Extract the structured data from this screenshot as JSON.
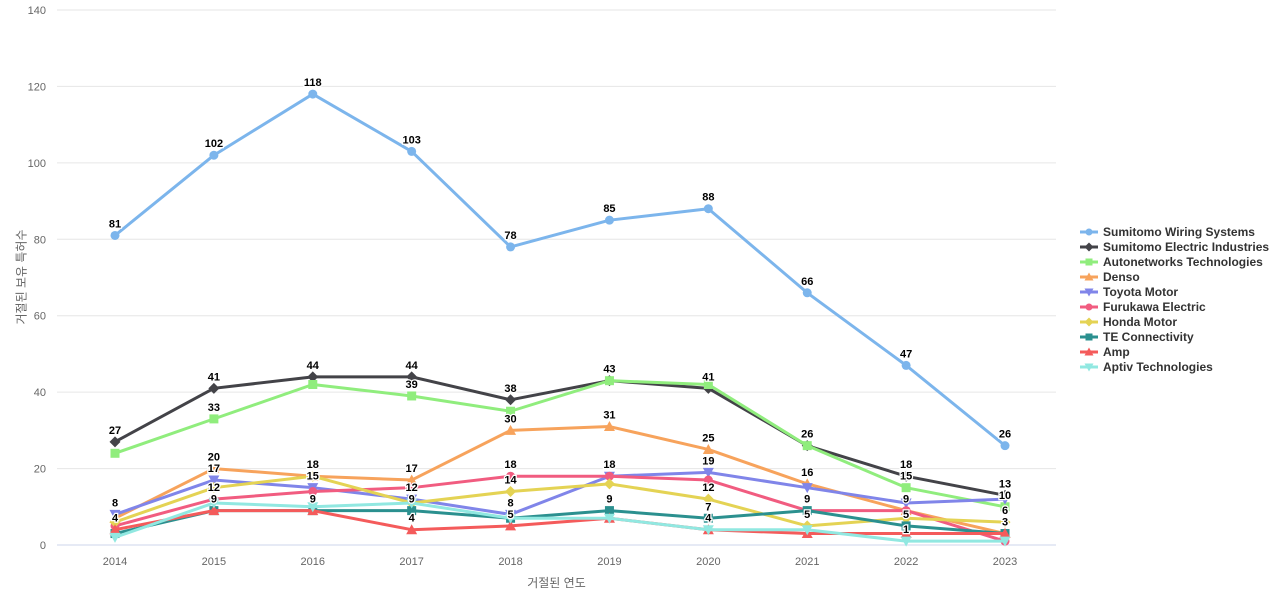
{
  "chart_data": {
    "type": "line",
    "title": "",
    "xlabel": "거절된 연도",
    "ylabel": "거절된 보유 특허수",
    "x_categories": [
      "2014",
      "2015",
      "2016",
      "2017",
      "2018",
      "2019",
      "2020",
      "2021",
      "2022",
      "2023"
    ],
    "y_ticks": [
      0,
      20,
      40,
      60,
      80,
      100,
      120,
      140
    ],
    "ylim": [
      0,
      140
    ],
    "grid": true,
    "legend_position": "right",
    "axis_colors": {
      "grid_line": "#e6e6e6",
      "axis_line": "#ccd6eb",
      "tick_text": "#666666"
    },
    "series": [
      {
        "name": "Sumitomo Wiring Systems",
        "color": "#7cb5ec",
        "marker": "circle",
        "values": [
          81,
          102,
          118,
          103,
          78,
          85,
          88,
          66,
          47,
          26
        ],
        "labels_visible": [
          1,
          1,
          1,
          1,
          1,
          1,
          1,
          1,
          1,
          1
        ]
      },
      {
        "name": "Sumitomo Electric Industries",
        "color": "#434348",
        "marker": "diamond",
        "values": [
          27,
          41,
          44,
          44,
          38,
          43,
          41,
          26,
          18,
          13
        ],
        "labels_visible": [
          1,
          1,
          1,
          1,
          1,
          1,
          1,
          1,
          1,
          1
        ]
      },
      {
        "name": "Autonetworks Technologies",
        "color": "#90ed7d",
        "marker": "square",
        "values": [
          24,
          33,
          42,
          39,
          35,
          43,
          42,
          26,
          15,
          10
        ],
        "labels_visible": [
          0,
          1,
          0,
          1,
          0,
          0,
          0,
          0,
          1,
          1
        ]
      },
      {
        "name": "Denso",
        "color": "#f7a35c",
        "marker": "triangle",
        "values": [
          7,
          20,
          18,
          17,
          30,
          31,
          25,
          16,
          9,
          3
        ],
        "labels_visible": [
          0,
          1,
          1,
          1,
          1,
          1,
          1,
          1,
          1,
          1
        ]
      },
      {
        "name": "Toyota Motor",
        "color": "#8085e9",
        "marker": "triangle-down",
        "values": [
          8,
          17,
          15,
          12,
          8,
          18,
          19,
          15,
          11,
          12
        ],
        "labels_visible": [
          1,
          1,
          1,
          1,
          1,
          1,
          1,
          0,
          0,
          0
        ]
      },
      {
        "name": "Furukawa Electric",
        "color": "#f15c80",
        "marker": "circle",
        "values": [
          5,
          12,
          14,
          15,
          18,
          18,
          17,
          9,
          9,
          1
        ],
        "labels_visible": [
          0,
          1,
          0,
          0,
          1,
          0,
          0,
          1,
          0,
          0
        ]
      },
      {
        "name": "Honda Motor",
        "color": "#e4d354",
        "marker": "diamond",
        "values": [
          6,
          15,
          18,
          11,
          14,
          16,
          12,
          5,
          7,
          6
        ],
        "labels_visible": [
          0,
          0,
          0,
          0,
          1,
          0,
          1,
          1,
          0,
          1
        ]
      },
      {
        "name": "TE Connectivity",
        "color": "#2b908f",
        "marker": "square",
        "values": [
          3,
          9,
          9,
          9,
          7,
          9,
          7,
          9,
          5,
          3
        ],
        "labels_visible": [
          0,
          1,
          1,
          1,
          0,
          1,
          1,
          0,
          1,
          0
        ]
      },
      {
        "name": "Amp",
        "color": "#f45b5b",
        "marker": "triangle",
        "values": [
          4,
          9,
          9,
          4,
          5,
          7,
          4,
          3,
          3,
          3
        ],
        "labels_visible": [
          1,
          0,
          0,
          1,
          1,
          0,
          1,
          0,
          0,
          0
        ]
      },
      {
        "name": "Aptiv Technologies",
        "color": "#91e8e1",
        "marker": "triangle-down",
        "values": [
          2,
          11,
          10,
          11,
          7,
          7,
          4,
          4,
          1,
          1
        ],
        "labels_visible": [
          0,
          0,
          0,
          0,
          0,
          0,
          0,
          0,
          1,
          0
        ]
      }
    ]
  }
}
